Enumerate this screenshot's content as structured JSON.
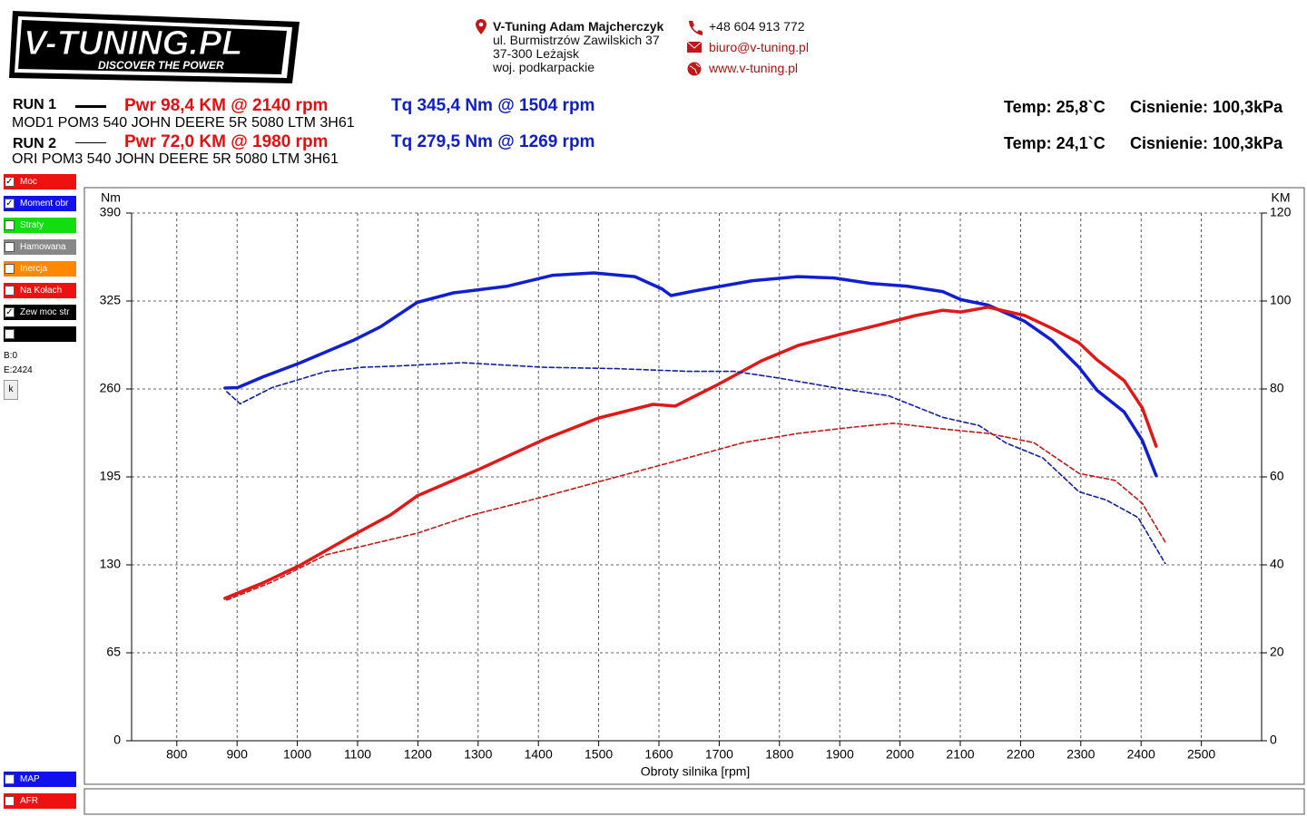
{
  "header": {
    "logo": "V-TUNING.PL",
    "slogan": "DISCOVER THE POWER",
    "company": "V-Tuning Adam Majcherczyk",
    "street": "ul. Burmistrzów Zawilskich 37",
    "city": "37-300 Leżajsk",
    "region": "woj. podkarpackie",
    "phone": "+48 604 913 772",
    "email": "biuro@v-tuning.pl",
    "web": "www.v-tuning.pl"
  },
  "runs": [
    {
      "label": "RUN 1",
      "power": "Pwr  98,4 KM @ 2140 rpm",
      "torque": "Tq 345,4 Nm @ 1504 rpm",
      "description": "MOD1 POM3 540 JOHN DEERE 5R 5080 LTM 3H61",
      "temp": "Temp: 25,8`C",
      "pressure": "Cisnienie: 100,3kPa"
    },
    {
      "label": "RUN 2",
      "power": "Pwr  72,0 KM @ 1980 rpm",
      "torque": "Tq 279,5 Nm @ 1269 rpm",
      "description": "ORI POM3 540 JOHN DEERE 5R 5080 LTM 3H61",
      "temp": "Temp: 24,1`C",
      "pressure": "Cisnienie: 100,3kPa"
    }
  ],
  "panel": {
    "items": [
      {
        "label": "Moc",
        "checked": true,
        "color": "#ee1111"
      },
      {
        "label": "Moment obr",
        "checked": true,
        "color": "#1111ee"
      },
      {
        "label": "Straty",
        "checked": false,
        "color": "#11dd11"
      },
      {
        "label": "Hamowana",
        "checked": false,
        "color": "#888888"
      },
      {
        "label": "Inercja",
        "checked": false,
        "color": "#ff8800"
      },
      {
        "label": "Na Kołach",
        "checked": false,
        "color": "#ee1111"
      },
      {
        "label": "Zew moc str",
        "checked": true,
        "color": "#000000"
      },
      {
        "label": "",
        "checked": false,
        "color": "#000000"
      }
    ],
    "b": "B:0",
    "e": "E:2424",
    "button": "k",
    "bottom_items": [
      {
        "label": "MAP",
        "checked": false,
        "color": "#1111ee"
      },
      {
        "label": "AFR",
        "checked": false,
        "color": "#ee1111"
      }
    ]
  },
  "chart_data": {
    "type": "line",
    "y_label": "Nm",
    "y2_label": "KM",
    "x_label": "Obroty silnika [rpm]",
    "xlim": [
      725,
      2600
    ],
    "xticks": [
      800,
      900,
      1000,
      1100,
      1200,
      1300,
      1400,
      1500,
      1600,
      1700,
      1800,
      1900,
      2000,
      2100,
      2200,
      2300,
      2400,
      2500
    ],
    "ylim": [
      0,
      390
    ],
    "yticks": [
      0,
      65,
      130,
      195,
      260,
      325,
      390
    ],
    "y2lim": [
      0,
      120
    ],
    "y2ticks": [
      0,
      20,
      40,
      60,
      80,
      100,
      120
    ],
    "grid": true,
    "series": [
      {
        "color": "#1020d0",
        "axis": "y",
        "dashed": false,
        "x": [
          880,
          901,
          943,
          1003,
          1093,
          1138,
          1199,
          1259,
          1349,
          1424,
          1492,
          1560,
          1605,
          1620,
          1665,
          1755,
          1830,
          1891,
          1951,
          2011,
          2071,
          2101,
          2146,
          2207,
          2252,
          2297,
          2327,
          2372,
          2402,
          2425
        ],
        "values": [
          260.7,
          261,
          269,
          279,
          296,
          306,
          324,
          331,
          336,
          344,
          345.8,
          343,
          334,
          329,
          333,
          340,
          343,
          342,
          338,
          336,
          332,
          326,
          322,
          310,
          296,
          276,
          259,
          243,
          222,
          196
        ]
      },
      {
        "color": "#e01818",
        "axis": "y2",
        "dashed": false,
        "x": [
          880,
          943,
          1003,
          1093,
          1154,
          1199,
          1304,
          1409,
          1500,
          1590,
          1627,
          1695,
          1770,
          1831,
          1906,
          1966,
          2026,
          2071,
          2101,
          2146,
          2207,
          2252,
          2297,
          2327,
          2372,
          2402,
          2425
        ],
        "values": [
          32.4,
          35.9,
          39.8,
          46.8,
          51.3,
          55.7,
          61.9,
          68.5,
          73.4,
          76.5,
          76.1,
          80.8,
          86.4,
          89.9,
          92.6,
          94.6,
          96.7,
          97.9,
          97.5,
          98.6,
          96.7,
          93.8,
          90.5,
          86.6,
          81.9,
          75.7,
          67.0
        ]
      },
      {
        "color": "#1020a0",
        "axis": "y",
        "dashed": true,
        "x": [
          883,
          905,
          958,
          1048,
          1108,
          1169,
          1274,
          1409,
          1530,
          1650,
          1725,
          1800,
          1891,
          1981,
          2071,
          2131,
          2176,
          2237,
          2297,
          2342,
          2395,
          2440
        ],
        "values": [
          258,
          249,
          261,
          273,
          276,
          277,
          279.4,
          276,
          275,
          273,
          273,
          268,
          261,
          255,
          239,
          233,
          220,
          209,
          184,
          178,
          165,
          131
        ]
      },
      {
        "color": "#c01818",
        "axis": "y2",
        "dashed": true,
        "x": [
          883,
          958,
          1048,
          1199,
          1289,
          1409,
          1530,
          1620,
          1740,
          1831,
          1921,
          1989,
          2071,
          2146,
          2222,
          2297,
          2357,
          2402,
          2440
        ],
        "values": [
          32.0,
          36.1,
          42.3,
          47.2,
          51.3,
          55.5,
          60.0,
          63.3,
          67.8,
          69.9,
          71.3,
          72.2,
          70.9,
          69.9,
          67.8,
          60.8,
          59.2,
          54.0,
          45.2
        ]
      }
    ]
  }
}
